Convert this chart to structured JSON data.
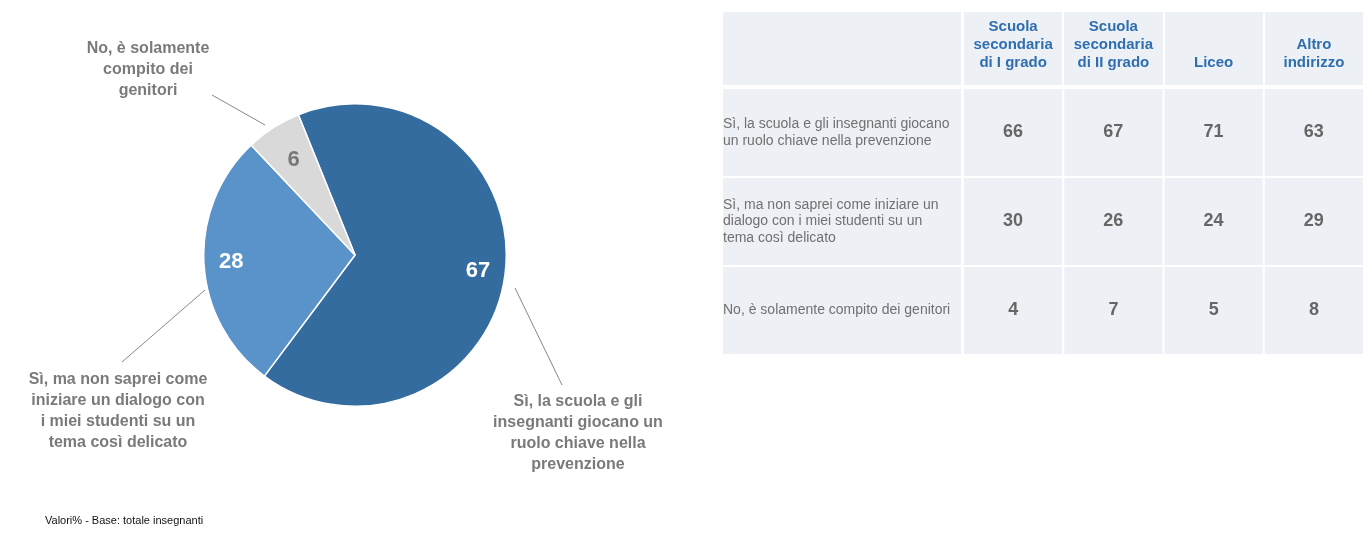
{
  "chart_data": [
    {
      "type": "pie",
      "categories": [
        "Sì, la scuola e gli insegnanti giocano un ruolo chiave nella prevenzione",
        "Sì, ma non saprei come iniziare un dialogo con i miei studenti su un tema così delicato",
        "No, è solamente compito dei genitori"
      ],
      "values": [
        67,
        28,
        6
      ],
      "colors": [
        "#356c9f",
        "#5a93c9",
        "#d9d9d9"
      ],
      "data_labels": true,
      "annotations": [
        "Valori% - Base: totale insegnanti"
      ]
    },
    {
      "type": "heatmap",
      "categories": [
        "Scuola secondaria di I grado",
        "Scuola secondaria di II grado",
        "Liceo",
        "Altro indirizzo"
      ],
      "y_categories": [
        "Sì, la scuola e gli insegnanti giocano un ruolo chiave nella prevenzione",
        "Sì, ma non saprei come iniziare un dialogo con i miei studenti su un tema così delicato",
        "No, è solamente compito dei genitori"
      ],
      "cells": [
        [
          66,
          67,
          71,
          63
        ],
        [
          30,
          26,
          24,
          29
        ],
        [
          4,
          7,
          5,
          8
        ]
      ],
      "data_labels": true
    }
  ]
}
